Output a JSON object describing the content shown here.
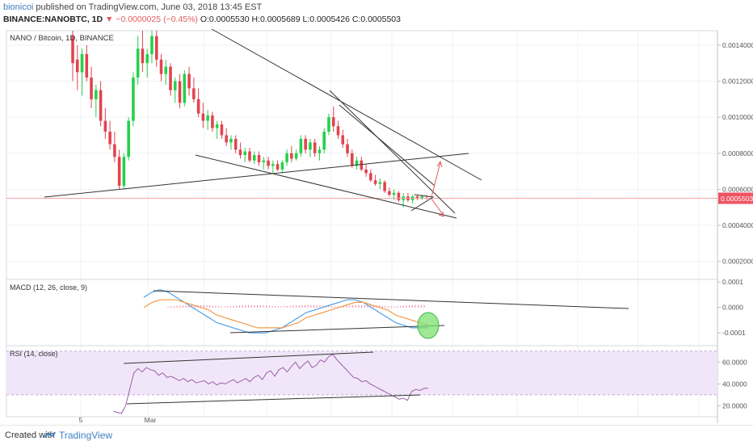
{
  "header": {
    "author": "bionicoi",
    "published": "published on TradingView.com, June 03, 2018 13:45 EST",
    "symbol": "BINANCE:NANOBTC, 1D",
    "change": "▼ −0.0000025 (−0.45%)",
    "ohlc": "O:0.0005530 H:0.0005689 L:0.0005426 C:0.0005503"
  },
  "footer": {
    "created_with": "Created with",
    "brand": "TradingView"
  },
  "colors": {
    "up": "#26d04a",
    "down": "#e2434f",
    "macd_line": "#4da0e8",
    "signal_line": "#f29a4a",
    "hist": "#f08aa0",
    "rsi_line": "#9b5fa8",
    "rsi_band": "#f1e6f9",
    "price_line": "#f2a2a8",
    "price_tag": "#ef5362"
  },
  "chart_data": [
    {
      "type": "candlestick",
      "title": "NANO / Bitcoin, 1D, BINANCE",
      "yticks": [
        "0.0014000",
        "0.0012000",
        "0.0010000",
        "0.0008000",
        "0.0006000",
        "0.0004000",
        "0.0002000"
      ],
      "ylim": [
        0.0001,
        0.00148
      ],
      "xticks": [
        "5",
        "Mar"
      ],
      "last_price": "0.0005503",
      "candles": [
        [
          0.00145,
          0.0015,
          0.0012,
          0.0013
        ],
        [
          0.00132,
          0.0014,
          0.00115,
          0.00125
        ],
        [
          0.00125,
          0.00138,
          0.00112,
          0.00135
        ],
        [
          0.00135,
          0.0014,
          0.0012,
          0.00122
        ],
        [
          0.00122,
          0.00128,
          0.00105,
          0.0011
        ],
        [
          0.0011,
          0.00118,
          0.001,
          0.00115
        ],
        [
          0.00115,
          0.0012,
          0.00095,
          0.00098
        ],
        [
          0.00098,
          0.00105,
          0.00088,
          0.00092
        ],
        [
          0.00092,
          0.00098,
          0.00082,
          0.00085
        ],
        [
          0.00085,
          0.00092,
          0.00075,
          0.00078
        ],
        [
          0.00078,
          0.00082,
          0.0006,
          0.00062
        ],
        [
          0.00062,
          0.0008,
          0.0006,
          0.00078
        ],
        [
          0.00078,
          0.001,
          0.00076,
          0.00098
        ],
        [
          0.00098,
          0.00125,
          0.00095,
          0.00122
        ],
        [
          0.00122,
          0.00145,
          0.00118,
          0.00138
        ],
        [
          0.00138,
          0.00148,
          0.00125,
          0.0013
        ],
        [
          0.0013,
          0.00138,
          0.00122,
          0.00135
        ],
        [
          0.00135,
          0.0015,
          0.0013,
          0.00145
        ],
        [
          0.00145,
          0.0015,
          0.00128,
          0.00132
        ],
        [
          0.00132,
          0.00135,
          0.0012,
          0.00124
        ],
        [
          0.00124,
          0.00132,
          0.00118,
          0.00128
        ],
        [
          0.00128,
          0.0013,
          0.00112,
          0.00115
        ],
        [
          0.00115,
          0.00122,
          0.00108,
          0.0012
        ],
        [
          0.0012,
          0.00124,
          0.00105,
          0.00108
        ],
        [
          0.00108,
          0.00126,
          0.00106,
          0.00124
        ],
        [
          0.00124,
          0.00128,
          0.00112,
          0.00116
        ],
        [
          0.00116,
          0.00122,
          0.00108,
          0.0011
        ],
        [
          0.0011,
          0.00116,
          0.001,
          0.00102
        ],
        [
          0.00102,
          0.00108,
          0.00094,
          0.00098
        ],
        [
          0.00098,
          0.00104,
          0.00093,
          0.00101
        ],
        [
          0.00101,
          0.00103,
          0.00092,
          0.00094
        ],
        [
          0.00094,
          0.00098,
          0.00088,
          0.00096
        ],
        [
          0.00096,
          0.00098,
          0.00088,
          0.0009
        ],
        [
          0.0009,
          0.00094,
          0.00084,
          0.00086
        ],
        [
          0.00086,
          0.0009,
          0.00082,
          0.00088
        ],
        [
          0.00088,
          0.0009,
          0.0008,
          0.00082
        ],
        [
          0.00082,
          0.00086,
          0.00077,
          0.00079
        ],
        [
          0.00079,
          0.00083,
          0.00075,
          0.00081
        ],
        [
          0.00081,
          0.00083,
          0.00075,
          0.00076
        ],
        [
          0.00076,
          0.00081,
          0.00074,
          0.00079
        ],
        [
          0.00079,
          0.00081,
          0.00073,
          0.00075
        ],
        [
          0.00075,
          0.00078,
          0.00071,
          0.00076
        ],
        [
          0.00076,
          0.00078,
          0.00071,
          0.00073
        ],
        [
          0.00073,
          0.00076,
          0.00069,
          0.00074
        ],
        [
          0.00074,
          0.00076,
          0.0007,
          0.00071
        ],
        [
          0.00071,
          0.00076,
          0.00069,
          0.00075
        ],
        [
          0.00075,
          0.00082,
          0.00073,
          0.0008
        ],
        [
          0.0008,
          0.00084,
          0.00075,
          0.00077
        ],
        [
          0.00077,
          0.00082,
          0.00076,
          0.0008
        ],
        [
          0.0008,
          0.0009,
          0.00078,
          0.00088
        ],
        [
          0.00088,
          0.0009,
          0.0008,
          0.00082
        ],
        [
          0.00082,
          0.00088,
          0.00078,
          0.00086
        ],
        [
          0.00086,
          0.00088,
          0.00078,
          0.0008
        ],
        [
          0.0008,
          0.00084,
          0.00076,
          0.00082
        ],
        [
          0.00082,
          0.00094,
          0.0008,
          0.00092
        ],
        [
          0.00092,
          0.00102,
          0.0009,
          0.001
        ],
        [
          0.001,
          0.00106,
          0.00092,
          0.00095
        ],
        [
          0.00095,
          0.00098,
          0.00088,
          0.0009
        ],
        [
          0.0009,
          0.00093,
          0.00083,
          0.00085
        ],
        [
          0.00085,
          0.00088,
          0.00078,
          0.0008
        ],
        [
          0.0008,
          0.00082,
          0.00072,
          0.00073
        ],
        [
          0.00073,
          0.00078,
          0.00071,
          0.00076
        ],
        [
          0.00076,
          0.00078,
          0.0007,
          0.00071
        ],
        [
          0.00071,
          0.00074,
          0.00067,
          0.00069
        ],
        [
          0.00069,
          0.00071,
          0.00064,
          0.00065
        ],
        [
          0.00065,
          0.00068,
          0.00062,
          0.00063
        ],
        [
          0.00063,
          0.00066,
          0.0006,
          0.00064
        ],
        [
          0.00064,
          0.00065,
          0.00058,
          0.00059
        ],
        [
          0.00059,
          0.00061,
          0.00056,
          0.00057
        ],
        [
          0.00057,
          0.0006,
          0.00054,
          0.00058
        ],
        [
          0.00058,
          0.00059,
          0.00053,
          0.00054
        ],
        [
          0.00054,
          0.00058,
          0.0005,
          0.00056
        ],
        [
          0.00056,
          0.00058,
          0.00053,
          0.00054
        ],
        [
          0.00054,
          0.00057,
          0.00052,
          0.00056
        ],
        [
          0.00056,
          0.00057,
          0.00054,
          0.00055
        ],
        [
          0.00055,
          0.00057,
          0.00054,
          0.00056
        ],
        [
          0.000553,
          0.0005689,
          0.0005426,
          0.0005503
        ]
      ]
    },
    {
      "type": "line",
      "title": "MACD (12, 26, close, 9)",
      "yticks": [
        "0.0001",
        "0.0000",
        "-0.0001"
      ],
      "ylim": [
        -0.00015,
        0.00011
      ],
      "series": [
        {
          "values": [
            4e-05,
            6e-05,
            7e-05,
            6e-05,
            4e-05,
            2e-05,
            0.0,
            -2e-05,
            -4e-05,
            -6e-05,
            -7e-05,
            -8e-05,
            -9e-05,
            -0.0001,
            -0.0001,
            -0.0001,
            -9e-05,
            -8e-05,
            -6e-05,
            -4e-05,
            -2e-05,
            -1e-05,
            0.0,
            1e-05,
            2e-05,
            3e-05,
            3e-05,
            2e-05,
            0.0,
            -2e-05,
            -4e-05,
            -6e-05,
            -7e-05,
            -8e-05,
            -8e-05,
            -8e-05
          ]
        },
        {
          "values": [
            0.0,
            2e-05,
            3e-05,
            3e-05,
            3e-05,
            2e-05,
            1e-05,
            0.0,
            -1e-05,
            -3e-05,
            -4e-05,
            -5e-05,
            -6e-05,
            -7e-05,
            -8e-05,
            -8e-05,
            -8e-05,
            -8e-05,
            -7e-05,
            -6e-05,
            -4e-05,
            -3e-05,
            -2e-05,
            -1e-05,
            0.0,
            1e-05,
            2e-05,
            2e-05,
            1e-05,
            0.0,
            -1e-05,
            -3e-05,
            -4e-05,
            -5e-05,
            -6e-05,
            -7e-05
          ]
        }
      ],
      "histogram": [
        1e-05,
        1e-05,
        1e-05,
        1e-05,
        1e-05,
        1e-05,
        1e-05,
        1e-05,
        1e-05,
        1e-05,
        1e-05,
        1e-05,
        1e-05,
        1e-05,
        1e-05,
        1e-05,
        1e-05,
        1e-05,
        1e-05,
        1e-05,
        1e-05,
        1e-05,
        1e-05,
        1e-05,
        1e-05,
        1e-05,
        1e-05,
        1e-05,
        1e-05,
        1e-05,
        1e-05,
        1e-05,
        1e-05,
        1e-05,
        1e-05,
        1e-05,
        1e-05,
        1e-05,
        1e-05,
        1e-05,
        1e-05,
        1e-05,
        1e-05,
        1e-05,
        1e-05,
        1e-05,
        1e-05,
        1e-05,
        1e-05,
        1e-05,
        1e-05,
        1e-05,
        1e-05,
        1e-05,
        1e-05,
        1e-05,
        1e-05,
        1e-05,
        1e-05,
        1e-05,
        1e-05,
        1e-05,
        1e-05,
        1e-05,
        1e-05,
        1e-05,
        1e-05,
        1e-05,
        1e-05,
        1e-05,
        1e-05,
        1e-05,
        1e-05,
        1e-05,
        1e-05,
        1e-05,
        1e-05,
        1e-05,
        1e-05,
        1e-05,
        1e-05,
        1e-05,
        1e-05,
        1e-05,
        1e-05,
        1e-05,
        1e-05
      ]
    },
    {
      "type": "line",
      "title": "RSI (14, close)",
      "yticks": [
        "60.0000",
        "40.0000",
        "20.0000"
      ],
      "ylim": [
        10,
        75
      ],
      "band": [
        30,
        70
      ],
      "series": [
        {
          "values": [
            15,
            14,
            13,
            20,
            35,
            50,
            54,
            51,
            55,
            53,
            52,
            48,
            50,
            46,
            47,
            45,
            43,
            45,
            42,
            44,
            41,
            42,
            43,
            40,
            42,
            39,
            41,
            40,
            42,
            44,
            41,
            43,
            45,
            42,
            46,
            48,
            44,
            50,
            52,
            47,
            53,
            55,
            51,
            56,
            60,
            54,
            58,
            61,
            55,
            57,
            62,
            60,
            65,
            67,
            62,
            58,
            54,
            50,
            46,
            45,
            42,
            43,
            40,
            38,
            36,
            34,
            32,
            30,
            28,
            26,
            27,
            25,
            33,
            35,
            34,
            36,
            36
          ]
        }
      ]
    }
  ]
}
